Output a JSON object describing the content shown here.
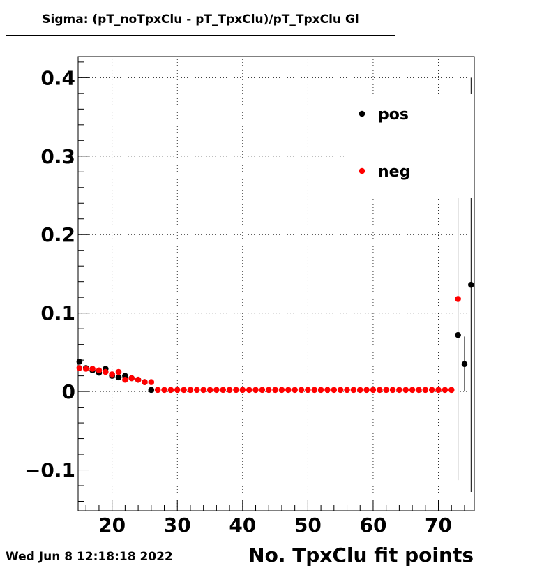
{
  "header": {
    "title": "Sigma: (pT_noTpxClu - pT_TpxClu)/pT_TpxClu Gl"
  },
  "footer": {
    "date": "Wed Jun  8 12:18:18 2022"
  },
  "chart_data": {
    "type": "scatter",
    "title": "Sigma: (pT_noTpxClu - pT_TpxClu)/pT_TpxClu Gl",
    "xlabel": "No. TpxClu fit points",
    "ylabel": "",
    "xlim": [
      14.8,
      75.5
    ],
    "ylim": [
      -0.152,
      0.427
    ],
    "grid": true,
    "legend_position": "top-right",
    "x_ticks": [
      20,
      30,
      40,
      50,
      60,
      70
    ],
    "y_ticks": [
      -0.1,
      0,
      0.1,
      0.2,
      0.3,
      0.4
    ],
    "x_tick_labels": [
      "20",
      "30",
      "40",
      "50",
      "60",
      "70"
    ],
    "y_tick_labels": [
      "−0.1",
      "0",
      "0.1",
      "0.2",
      "0.3",
      "0.4"
    ],
    "series": [
      {
        "name": "pos",
        "color": "#000000",
        "points": [
          {
            "x": 15,
            "y": 0.038
          },
          {
            "x": 16,
            "y": 0.03
          },
          {
            "x": 17,
            "y": 0.027
          },
          {
            "x": 18,
            "y": 0.024
          },
          {
            "x": 19,
            "y": 0.029
          },
          {
            "x": 20,
            "y": 0.02
          },
          {
            "x": 21,
            "y": 0.018
          },
          {
            "x": 22,
            "y": 0.02
          },
          {
            "x": 23,
            "y": 0.017
          },
          {
            "x": 24,
            "y": 0.015
          },
          {
            "x": 25,
            "y": 0.012
          },
          {
            "x": 26,
            "y": 0.002
          },
          {
            "x": 73,
            "y": 0.072,
            "err": 0.185
          },
          {
            "x": 74,
            "y": 0.035,
            "err": 0.035
          },
          {
            "x": 75,
            "y": 0.136,
            "err": 0.264
          }
        ]
      },
      {
        "name": "neg",
        "color": "#ff0000",
        "points": [
          {
            "x": 15,
            "y": 0.03
          },
          {
            "x": 16,
            "y": 0.029
          },
          {
            "x": 17,
            "y": 0.029
          },
          {
            "x": 18,
            "y": 0.027
          },
          {
            "x": 19,
            "y": 0.025
          },
          {
            "x": 20,
            "y": 0.022
          },
          {
            "x": 21,
            "y": 0.025
          },
          {
            "x": 22,
            "y": 0.015
          },
          {
            "x": 23,
            "y": 0.017
          },
          {
            "x": 24,
            "y": 0.015
          },
          {
            "x": 25,
            "y": 0.012
          },
          {
            "x": 26,
            "y": 0.012
          },
          {
            "x": 27,
            "y": 0.002
          },
          {
            "x": 28,
            "y": 0.002
          },
          {
            "x": 29,
            "y": 0.002
          },
          {
            "x": 30,
            "y": 0.002
          },
          {
            "x": 31,
            "y": 0.002
          },
          {
            "x": 32,
            "y": 0.002
          },
          {
            "x": 33,
            "y": 0.002
          },
          {
            "x": 34,
            "y": 0.002
          },
          {
            "x": 35,
            "y": 0.002
          },
          {
            "x": 36,
            "y": 0.002
          },
          {
            "x": 37,
            "y": 0.002
          },
          {
            "x": 38,
            "y": 0.002
          },
          {
            "x": 39,
            "y": 0.002
          },
          {
            "x": 40,
            "y": 0.002
          },
          {
            "x": 41,
            "y": 0.002
          },
          {
            "x": 42,
            "y": 0.002
          },
          {
            "x": 43,
            "y": 0.002
          },
          {
            "x": 44,
            "y": 0.002
          },
          {
            "x": 45,
            "y": 0.002
          },
          {
            "x": 46,
            "y": 0.002
          },
          {
            "x": 47,
            "y": 0.002
          },
          {
            "x": 48,
            "y": 0.002
          },
          {
            "x": 49,
            "y": 0.002
          },
          {
            "x": 50,
            "y": 0.002
          },
          {
            "x": 51,
            "y": 0.002
          },
          {
            "x": 52,
            "y": 0.002
          },
          {
            "x": 53,
            "y": 0.002
          },
          {
            "x": 54,
            "y": 0.002
          },
          {
            "x": 55,
            "y": 0.002
          },
          {
            "x": 56,
            "y": 0.002
          },
          {
            "x": 57,
            "y": 0.002
          },
          {
            "x": 58,
            "y": 0.002
          },
          {
            "x": 59,
            "y": 0.002
          },
          {
            "x": 60,
            "y": 0.002
          },
          {
            "x": 61,
            "y": 0.002
          },
          {
            "x": 62,
            "y": 0.002
          },
          {
            "x": 63,
            "y": 0.002
          },
          {
            "x": 64,
            "y": 0.002
          },
          {
            "x": 65,
            "y": 0.002
          },
          {
            "x": 66,
            "y": 0.002
          },
          {
            "x": 67,
            "y": 0.002
          },
          {
            "x": 68,
            "y": 0.002
          },
          {
            "x": 69,
            "y": 0.002
          },
          {
            "x": 70,
            "y": 0.002
          },
          {
            "x": 71,
            "y": 0.002
          },
          {
            "x": 72,
            "y": 0.002
          },
          {
            "x": 73,
            "y": 0.118
          }
        ]
      }
    ]
  }
}
